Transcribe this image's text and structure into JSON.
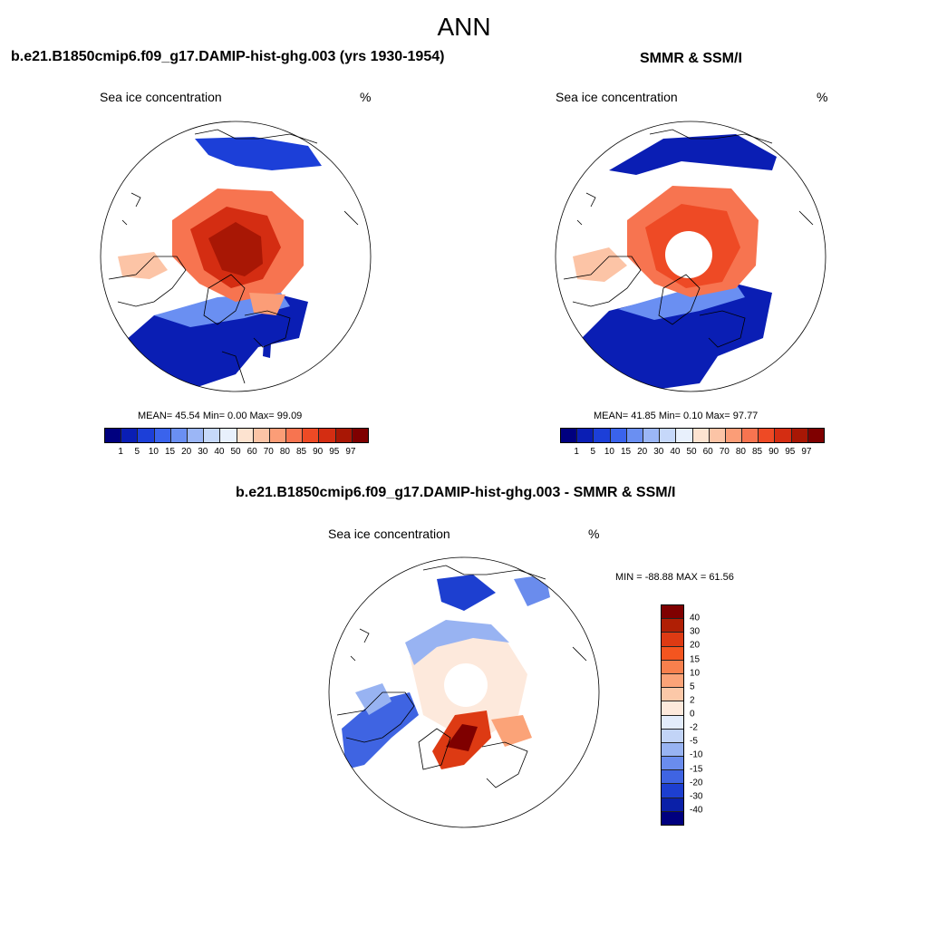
{
  "title": "ANN",
  "panels": [
    {
      "title": "b.e21.B1850cmip6.f09_g17.DAMIP-hist-ghg.003 (yrs 1930-1954)",
      "left_label": "Sea ice concentration",
      "right_label": "%",
      "stats": "MEAN=  45.54  Min=   0.00  Max=  99.09"
    },
    {
      "title": "SMMR & SSM/I",
      "left_label": "Sea ice concentration",
      "right_label": "%",
      "stats": "MEAN=  41.85  Min=   0.10  Max=  97.77"
    },
    {
      "title": "b.e21.B1850cmip6.f09_g17.DAMIP-hist-ghg.003 - SMMR & SSM/I",
      "left_label": "Sea ice concentration",
      "right_label": "%",
      "stats": "MIN = -88.88 MAX =  61.56"
    }
  ],
  "colorbar_levels": [
    "1",
    "5",
    "10",
    "15",
    "20",
    "30",
    "40",
    "50",
    "60",
    "70",
    "80",
    "85",
    "90",
    "95",
    "97"
  ],
  "colorbar_colors": [
    "#00007f",
    "#0a1eb4",
    "#1c3fd8",
    "#3a63ec",
    "#6a8ff2",
    "#9bb6f6",
    "#c6d8fa",
    "#e8f0fc",
    "#fde3d0",
    "#fcc4a6",
    "#fb9d77",
    "#f77450",
    "#ee4a25",
    "#d42d12",
    "#a81705",
    "#7f0000"
  ],
  "diff_levels": [
    "40",
    "30",
    "20",
    "15",
    "10",
    "5",
    "2",
    "0",
    "-2",
    "-5",
    "-10",
    "-15",
    "-20",
    "-30",
    "-40"
  ],
  "diff_colors": [
    "#7f0000",
    "#b01f05",
    "#dd3a13",
    "#f4551f",
    "#f8804d",
    "#fba378",
    "#fcc8a8",
    "#fde9dc",
    "#e3ecfb",
    "#c2d4f7",
    "#98b3f2",
    "#6a8ced",
    "#3f64e2",
    "#1d3fd0",
    "#0a20a8",
    "#00007f"
  ]
}
